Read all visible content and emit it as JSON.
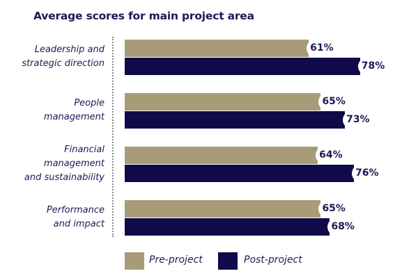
{
  "chart_data": {
    "type": "bar",
    "orientation": "horizontal",
    "title": "Average scores for main project area",
    "categories": [
      "Leadership and strategic direction",
      "People management",
      "Financial management and sustainability",
      "Performance and impact"
    ],
    "category_lines": [
      [
        "Leadership and",
        "strategic direction"
      ],
      [
        "People",
        "management"
      ],
      [
        "Financial",
        "management",
        "and sustainability"
      ],
      [
        "Performance",
        "and impact"
      ]
    ],
    "series": [
      {
        "name": "Pre-project",
        "color": "#a89b78",
        "values": [
          61,
          65,
          64,
          65
        ],
        "labels": [
          "61%",
          "65%",
          "64%",
          "65%"
        ]
      },
      {
        "name": "Post-project",
        "color": "#100a4a",
        "values": [
          78,
          73,
          76,
          68
        ],
        "labels": [
          "78%",
          "73%",
          "76%",
          "68%"
        ]
      }
    ],
    "xlim": [
      0,
      100
    ],
    "unit": "%",
    "grid": false,
    "legend": "bottom"
  }
}
